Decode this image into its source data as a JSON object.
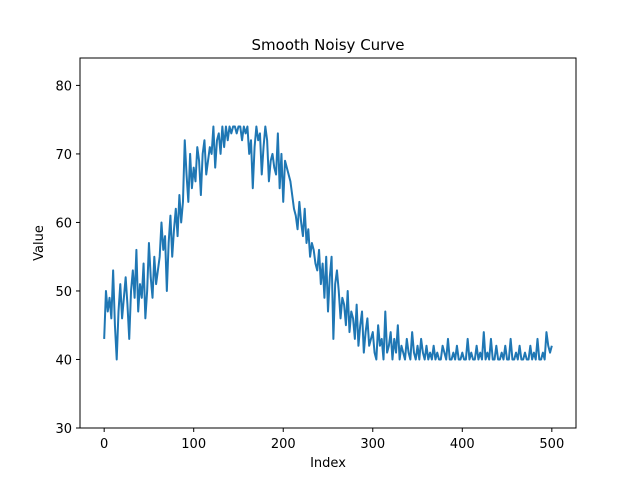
{
  "chart_data": {
    "type": "line",
    "title": "Smooth Noisy Curve",
    "xlabel": "Index",
    "ylabel": "Value",
    "xlim": [
      -27,
      527
    ],
    "ylim": [
      30,
      84
    ],
    "xticks": [
      0,
      100,
      200,
      300,
      400,
      500
    ],
    "yticks": [
      30,
      40,
      50,
      60,
      70,
      80
    ],
    "grid": false,
    "legend": "none",
    "series": [
      {
        "color": "#1f77b4",
        "x": [
          0,
          2,
          4,
          6,
          8,
          10,
          12,
          14,
          16,
          18,
          20,
          22,
          24,
          26,
          28,
          30,
          32,
          34,
          36,
          38,
          40,
          42,
          44,
          46,
          48,
          50,
          52,
          54,
          56,
          58,
          60,
          62,
          64,
          66,
          68,
          70,
          72,
          74,
          76,
          78,
          80,
          82,
          84,
          86,
          88,
          90,
          92,
          94,
          96,
          98,
          100,
          102,
          104,
          106,
          108,
          110,
          112,
          114,
          116,
          118,
          120,
          122,
          124,
          126,
          128,
          130,
          132,
          134,
          136,
          138,
          140,
          142,
          144,
          146,
          148,
          150,
          152,
          154,
          156,
          158,
          160,
          162,
          164,
          166,
          168,
          170,
          172,
          174,
          176,
          178,
          180,
          182,
          184,
          186,
          188,
          190,
          192,
          194,
          196,
          198,
          200,
          202,
          204,
          206,
          208,
          210,
          212,
          214,
          216,
          218,
          220,
          222,
          224,
          226,
          228,
          230,
          232,
          234,
          236,
          238,
          240,
          242,
          244,
          246,
          248,
          250,
          252,
          254,
          256,
          258,
          260,
          262,
          264,
          266,
          268,
          270,
          272,
          274,
          276,
          278,
          280,
          282,
          284,
          286,
          288,
          290,
          292,
          294,
          296,
          298,
          300,
          302,
          304,
          306,
          308,
          310,
          312,
          314,
          316,
          318,
          320,
          322,
          324,
          326,
          328,
          330,
          332,
          334,
          336,
          338,
          340,
          342,
          344,
          346,
          348,
          350,
          352,
          354,
          356,
          358,
          360,
          362,
          364,
          366,
          368,
          370,
          372,
          374,
          376,
          378,
          380,
          382,
          384,
          386,
          388,
          390,
          392,
          394,
          396,
          398,
          400,
          402,
          404,
          406,
          408,
          410,
          412,
          414,
          416,
          418,
          420,
          422,
          424,
          426,
          428,
          430,
          432,
          434,
          436,
          438,
          440,
          442,
          444,
          446,
          448,
          450,
          452,
          454,
          456,
          458,
          460,
          462,
          464,
          466,
          468,
          470,
          472,
          474,
          476,
          478,
          480,
          482,
          484,
          486,
          488,
          490,
          492,
          494,
          496,
          498,
          500
        ],
        "values": [
          43,
          50,
          47,
          49,
          46,
          53,
          45,
          40,
          47,
          51,
          46,
          49,
          52,
          48,
          43,
          50,
          53,
          49,
          56,
          47,
          51,
          49,
          54,
          46,
          50,
          57,
          52,
          49,
          55,
          51,
          53,
          55,
          60,
          56,
          58,
          50,
          57,
          61,
          55,
          59,
          62,
          58,
          64,
          60,
          63,
          72,
          67,
          63,
          70,
          65,
          68,
          66,
          71,
          69,
          64,
          70,
          72,
          67,
          69,
          71,
          70,
          74,
          68,
          72,
          73,
          70,
          74,
          71,
          74,
          72,
          74,
          73,
          74,
          74,
          73,
          74,
          74,
          72,
          74,
          73,
          74,
          70,
          72,
          65,
          71,
          74,
          72,
          73,
          67,
          71,
          74,
          72,
          66,
          69,
          70,
          68,
          67,
          73,
          65,
          70,
          63,
          69,
          68,
          67,
          66,
          64,
          62,
          61,
          59,
          63,
          60,
          58,
          62,
          57,
          59,
          55,
          57,
          56,
          54,
          53,
          56,
          51,
          54,
          49,
          55,
          47,
          52,
          55,
          43,
          51,
          53,
          50,
          46,
          49,
          48,
          45,
          50,
          44,
          47,
          46,
          43,
          48,
          42,
          45,
          47,
          41,
          44,
          46,
          42,
          43,
          44,
          41,
          40,
          45,
          42,
          43,
          40,
          47,
          41,
          42,
          44,
          40,
          43,
          41,
          45,
          40,
          42,
          41,
          40,
          43,
          41,
          40,
          44,
          41,
          40,
          42,
          40,
          43,
          41,
          40,
          42,
          40,
          41,
          40,
          42,
          40,
          41,
          40,
          40,
          42,
          41,
          40,
          43,
          40,
          40,
          41,
          40,
          42,
          40,
          40,
          41,
          40,
          40,
          43,
          40,
          41,
          40,
          40,
          42,
          40,
          41,
          40,
          44,
          40,
          41,
          40,
          43,
          40,
          40,
          42,
          40,
          40,
          41,
          40,
          42,
          40,
          40,
          43,
          40,
          40,
          41,
          40,
          42,
          40,
          40,
          41,
          40,
          40,
          42,
          40,
          41,
          40,
          43,
          40,
          40,
          41,
          40,
          44,
          42,
          41,
          42
        ]
      }
    ]
  }
}
